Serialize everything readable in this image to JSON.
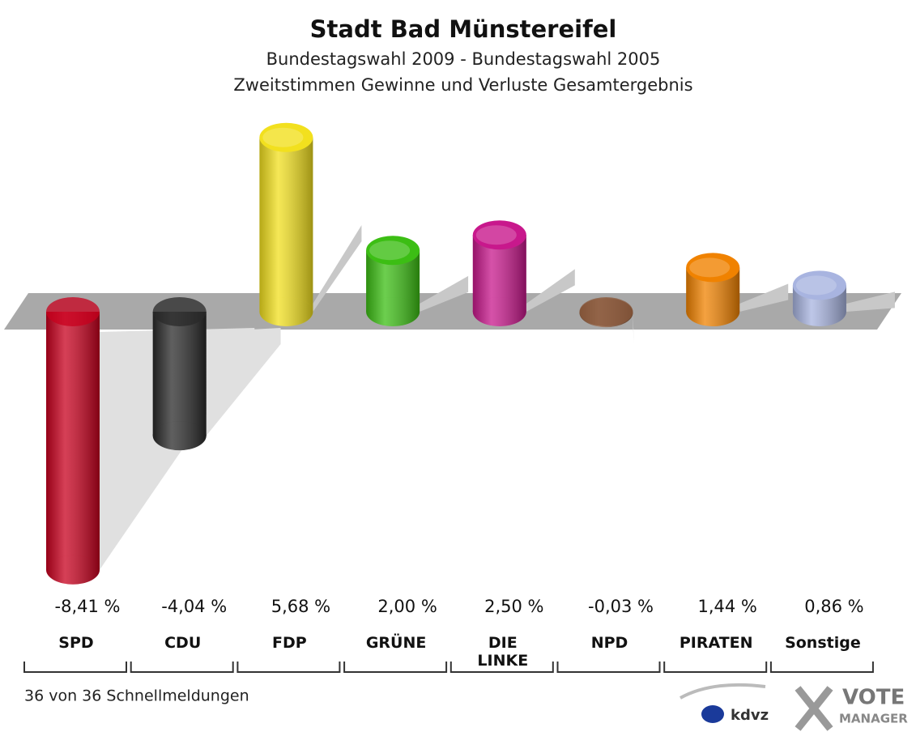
{
  "chart_data": {
    "type": "bar",
    "title": "Stadt Bad Münstereifel",
    "subtitle": "Bundestagswahl 2009 - Bundestagswahl 2005",
    "subtitle2": "Zweitstimmen Gewinne und Verluste Gesamtergebnis",
    "categories": [
      "SPD",
      "CDU",
      "FDP",
      "GRÜNE",
      "DIE LINKE",
      "NPD",
      "PIRATEN",
      "Sonstige"
    ],
    "values": [
      -8.41,
      -4.04,
      5.68,
      2.0,
      2.5,
      -0.03,
      1.44,
      0.86
    ],
    "value_labels": [
      "-8,41 %",
      "-4,04 %",
      "5,68 %",
      "2,00 %",
      "2,50 %",
      "-0,03 %",
      "1,44 %",
      "0,86 %"
    ],
    "colors": [
      "#c8001e",
      "#2a2a2a",
      "#f2e01e",
      "#3cbe14",
      "#c8188c",
      "#8b5a3c",
      "#f08200",
      "#a8b4e0"
    ],
    "footer": "36 von 36 Schnellmeldungen",
    "logo_left": "kdvz",
    "logo_right": "VOTE",
    "logo_right2": "MANAGER"
  }
}
